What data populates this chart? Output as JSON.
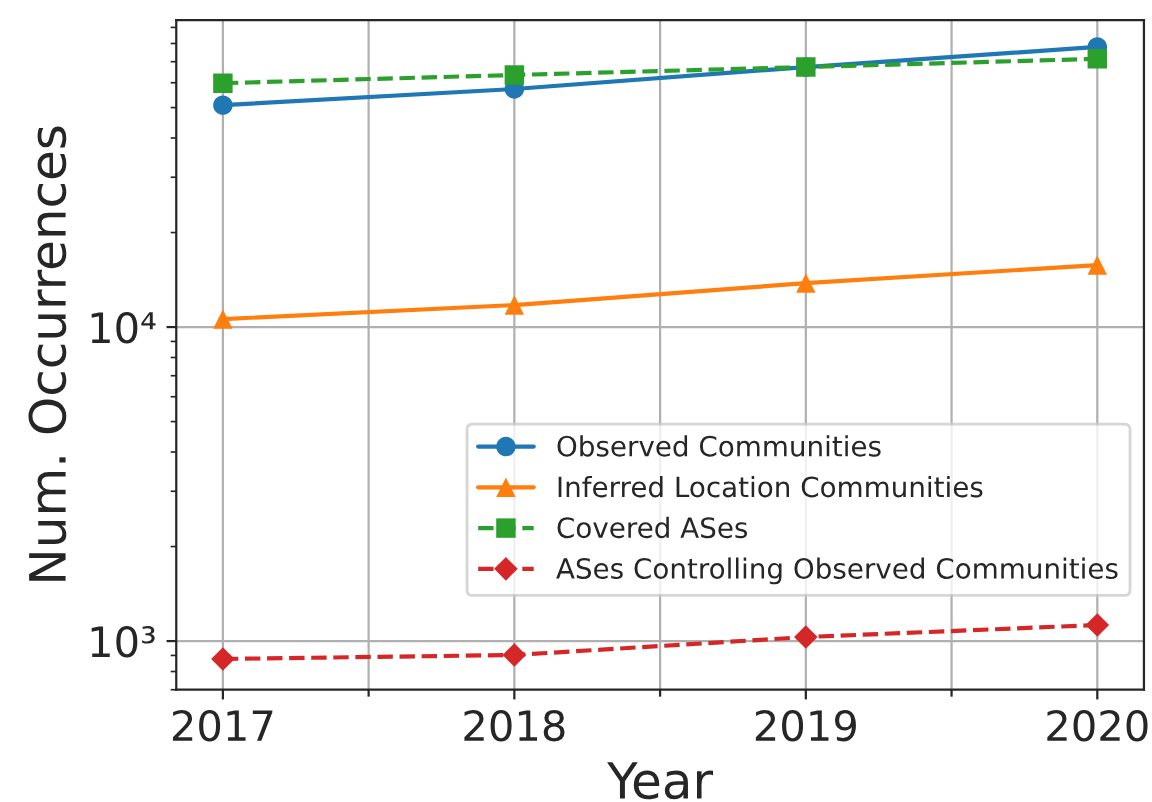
{
  "chart_data": {
    "type": "line",
    "xlabel": "Year",
    "ylabel": "Num. Occurrences",
    "log": "y",
    "x": [
      2017,
      2018,
      2019,
      2020
    ],
    "xlim": [
      2016.84,
      2020.16
    ],
    "xticks": [
      2017,
      {
        "value": 2017.5,
        "label": null
      },
      2018,
      {
        "value": 2018.5,
        "label": null
      },
      2019,
      {
        "value": 2019.5,
        "label": null
      },
      2020
    ],
    "ylim": [
      700,
      95000
    ],
    "yticks": [
      {
        "value": 1000,
        "label": "10³"
      },
      {
        "value": 10000,
        "label": "10⁴"
      }
    ],
    "grid": true,
    "legend": "lower right",
    "series": [
      {
        "name": "Observed Communities",
        "color": "#1f77b4",
        "marker": "circle",
        "line_style": "solid",
        "values": [
          50900,
          57300,
          67300,
          78000
        ]
      },
      {
        "name": "Inferred Location Communities",
        "color": "#ff7f0e",
        "marker": "triangle",
        "line_style": "solid",
        "values": [
          10600,
          11750,
          13800,
          15750
        ]
      },
      {
        "name": "Covered ASes",
        "color": "#2ca02c",
        "marker": "square",
        "line_style": "dashed",
        "values": [
          59800,
          63500,
          67300,
          71500
        ]
      },
      {
        "name": "ASes Controlling Observed Communities",
        "color": "#d62728",
        "marker": "diamond",
        "line_style": "dashed",
        "values": [
          877,
          903,
          1030,
          1125
        ]
      }
    ]
  }
}
